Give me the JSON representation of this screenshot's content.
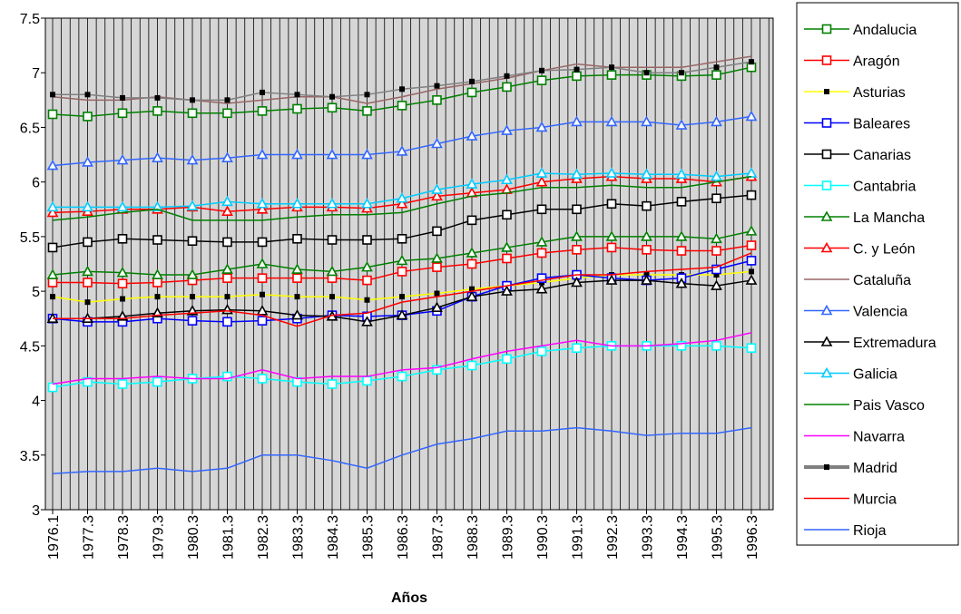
{
  "chart_data": {
    "type": "line",
    "x_label": "Años",
    "categories": [
      "1976.1",
      "1977.3",
      "1978.3",
      "1979.3",
      "1980.3",
      "1981.3",
      "1982.3",
      "1983.3",
      "1984.3",
      "1985.3",
      "1986.3",
      "1987.3",
      "1988.3",
      "1989.3",
      "1990.3",
      "1991.3",
      "1992.3",
      "1993.3",
      "1994.3",
      "1995.3",
      "1996.3"
    ],
    "ylim": [
      3,
      7.5
    ],
    "yticks": [
      3,
      3.5,
      4,
      4.5,
      5,
      5.5,
      6,
      6.5,
      7,
      7.5
    ],
    "vertical_grid": true,
    "legend": "right",
    "series": [
      {
        "name": "Andalucia",
        "color": "#008000",
        "marker": "square",
        "values": [
          6.62,
          6.6,
          6.63,
          6.65,
          6.63,
          6.63,
          6.65,
          6.67,
          6.68,
          6.65,
          6.7,
          6.75,
          6.82,
          6.87,
          6.93,
          6.97,
          6.98,
          6.98,
          6.97,
          6.98,
          7.05
        ]
      },
      {
        "name": "Aragón",
        "color": "#ff0000",
        "marker": "square",
        "values": [
          5.08,
          5.08,
          5.07,
          5.08,
          5.1,
          5.12,
          5.12,
          5.12,
          5.12,
          5.1,
          5.18,
          5.22,
          5.25,
          5.3,
          5.35,
          5.38,
          5.4,
          5.38,
          5.37,
          5.37,
          5.42
        ]
      },
      {
        "name": "Asturias",
        "color": "#ffff00",
        "marker": "dot",
        "values": [
          4.95,
          4.9,
          4.93,
          4.95,
          4.95,
          4.95,
          4.97,
          4.95,
          4.95,
          4.92,
          4.95,
          4.98,
          5.02,
          5.05,
          5.08,
          5.12,
          5.15,
          5.15,
          5.15,
          5.15,
          5.18
        ]
      },
      {
        "name": "Baleares",
        "color": "#0000ff",
        "marker": "square",
        "values": [
          4.75,
          4.72,
          4.72,
          4.75,
          4.73,
          4.72,
          4.73,
          4.75,
          4.78,
          4.77,
          4.78,
          4.82,
          4.95,
          5.05,
          5.12,
          5.15,
          5.12,
          5.1,
          5.12,
          5.2,
          5.28
        ]
      },
      {
        "name": "Canarias",
        "color": "#000000",
        "marker": "square",
        "values": [
          5.4,
          5.45,
          5.48,
          5.47,
          5.46,
          5.45,
          5.45,
          5.48,
          5.47,
          5.47,
          5.48,
          5.55,
          5.65,
          5.7,
          5.75,
          5.75,
          5.8,
          5.78,
          5.82,
          5.85,
          5.88
        ]
      },
      {
        "name": "Cantabria",
        "color": "#00ffff",
        "marker": "square",
        "values": [
          4.12,
          4.17,
          4.15,
          4.17,
          4.2,
          4.22,
          4.2,
          4.17,
          4.15,
          4.18,
          4.22,
          4.28,
          4.32,
          4.38,
          4.45,
          4.48,
          4.5,
          4.5,
          4.5,
          4.5,
          4.48
        ]
      },
      {
        "name": "La Mancha",
        "color": "#008000",
        "marker": "triangle",
        "values": [
          5.15,
          5.18,
          5.17,
          5.15,
          5.15,
          5.2,
          5.25,
          5.2,
          5.18,
          5.22,
          5.28,
          5.3,
          5.35,
          5.4,
          5.45,
          5.5,
          5.5,
          5.5,
          5.5,
          5.48,
          5.55
        ]
      },
      {
        "name": "C. y León",
        "color": "#ff0000",
        "marker": "triangle",
        "values": [
          5.72,
          5.73,
          5.75,
          5.75,
          5.77,
          5.73,
          5.75,
          5.77,
          5.77,
          5.76,
          5.8,
          5.87,
          5.9,
          5.93,
          6.0,
          6.03,
          6.05,
          6.03,
          6.03,
          6.0,
          6.05
        ]
      },
      {
        "name": "Cataluña",
        "color": "#996666",
        "marker": "none",
        "values": [
          6.78,
          6.75,
          6.75,
          6.78,
          6.75,
          6.72,
          6.75,
          6.78,
          6.78,
          6.72,
          6.78,
          6.85,
          6.9,
          6.95,
          7.02,
          7.08,
          7.05,
          7.05,
          7.05,
          7.1,
          7.15
        ]
      },
      {
        "name": "Valencia",
        "color": "#3366ff",
        "marker": "triangle",
        "values": [
          6.15,
          6.18,
          6.2,
          6.22,
          6.2,
          6.22,
          6.25,
          6.25,
          6.25,
          6.25,
          6.28,
          6.35,
          6.42,
          6.47,
          6.5,
          6.55,
          6.55,
          6.55,
          6.52,
          6.55,
          6.6
        ]
      },
      {
        "name": "Extremadura",
        "color": "#000000",
        "marker": "triangle",
        "values": [
          4.75,
          4.75,
          4.77,
          4.8,
          4.82,
          4.83,
          4.82,
          4.78,
          4.77,
          4.72,
          4.78,
          4.85,
          4.95,
          5.0,
          5.02,
          5.08,
          5.1,
          5.1,
          5.07,
          5.05,
          5.1
        ]
      },
      {
        "name": "Galicia",
        "color": "#00ccff",
        "marker": "triangle",
        "values": [
          5.77,
          5.77,
          5.77,
          5.77,
          5.78,
          5.82,
          5.8,
          5.8,
          5.8,
          5.8,
          5.85,
          5.93,
          5.98,
          6.02,
          6.08,
          6.07,
          6.08,
          6.07,
          6.07,
          6.05,
          6.08
        ]
      },
      {
        "name": "Pais Vasco",
        "color": "#008000",
        "marker": "none",
        "values": [
          5.65,
          5.68,
          5.72,
          5.75,
          5.65,
          5.65,
          5.65,
          5.68,
          5.7,
          5.7,
          5.72,
          5.8,
          5.87,
          5.9,
          5.95,
          5.95,
          5.97,
          5.95,
          5.95,
          6.0,
          6.05
        ]
      },
      {
        "name": "Navarra",
        "color": "#ff00ff",
        "marker": "none",
        "values": [
          4.15,
          4.2,
          4.2,
          4.22,
          4.2,
          4.2,
          4.28,
          4.2,
          4.22,
          4.22,
          4.28,
          4.3,
          4.38,
          4.45,
          4.5,
          4.55,
          4.5,
          4.5,
          4.52,
          4.55,
          4.62
        ]
      },
      {
        "name": "Madrid",
        "color": "#808080",
        "marker": "dot",
        "values": [
          6.8,
          6.8,
          6.77,
          6.77,
          6.75,
          6.75,
          6.82,
          6.8,
          6.78,
          6.8,
          6.85,
          6.88,
          6.92,
          6.97,
          7.02,
          7.03,
          7.05,
          7.0,
          7.0,
          7.05,
          7.1
        ]
      },
      {
        "name": "Murcia",
        "color": "#ff0000",
        "marker": "none",
        "values": [
          4.75,
          4.75,
          4.75,
          4.78,
          4.8,
          4.82,
          4.78,
          4.68,
          4.78,
          4.8,
          4.9,
          4.95,
          5.0,
          5.05,
          5.1,
          5.15,
          5.15,
          5.18,
          5.2,
          5.22,
          5.35
        ]
      },
      {
        "name": "Rioja",
        "color": "#3366ff",
        "marker": "none",
        "values": [
          3.33,
          3.35,
          3.35,
          3.38,
          3.35,
          3.38,
          3.5,
          3.5,
          3.45,
          3.38,
          3.5,
          3.6,
          3.65,
          3.72,
          3.72,
          3.75,
          3.72,
          3.68,
          3.7,
          3.7,
          3.75
        ]
      }
    ]
  }
}
